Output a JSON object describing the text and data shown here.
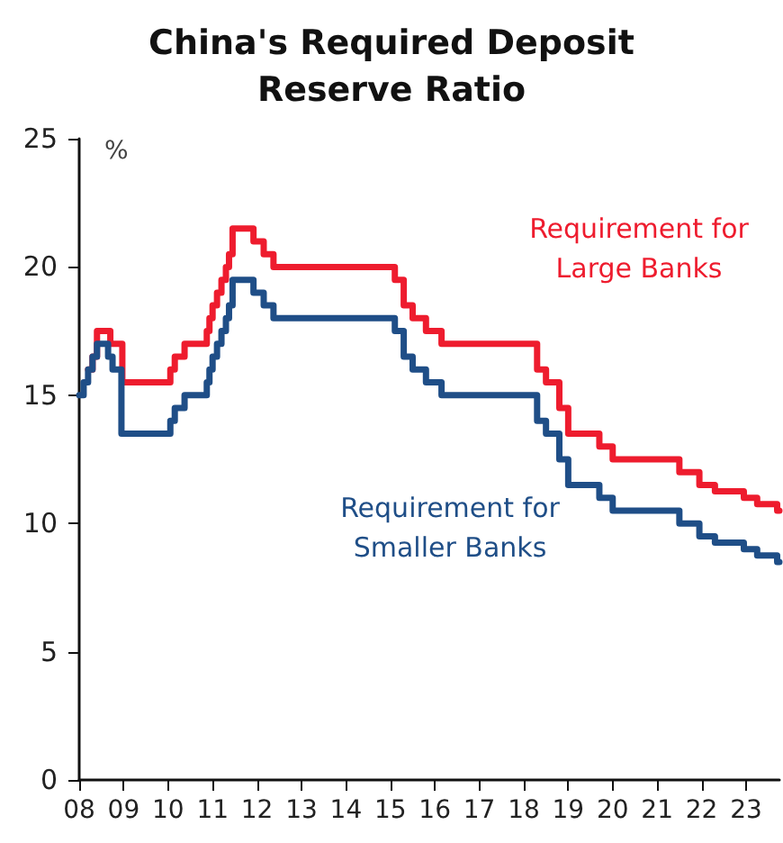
{
  "chart_data": {
    "type": "step",
    "title": "China's Required Deposit\nReserve Ratio",
    "ylabel": "%",
    "xlim": [
      2008,
      2023.75
    ],
    "ylim": [
      0,
      25
    ],
    "yticks": [
      0,
      5,
      10,
      15,
      20,
      25
    ],
    "xticks": [
      {
        "value": 2008,
        "label": "08"
      },
      {
        "value": 2009,
        "label": "09"
      },
      {
        "value": 2010,
        "label": "10"
      },
      {
        "value": 2011,
        "label": "11"
      },
      {
        "value": 2012,
        "label": "12"
      },
      {
        "value": 2013,
        "label": "13"
      },
      {
        "value": 2014,
        "label": "14"
      },
      {
        "value": 2015,
        "label": "15"
      },
      {
        "value": 2016,
        "label": "16"
      },
      {
        "value": 2017,
        "label": "17"
      },
      {
        "value": 2018,
        "label": "18"
      },
      {
        "value": 2019,
        "label": "19"
      },
      {
        "value": 2020,
        "label": "20"
      },
      {
        "value": 2021,
        "label": "21"
      },
      {
        "value": 2022,
        "label": "22"
      },
      {
        "value": 2023,
        "label": "23"
      }
    ],
    "grid": false,
    "legend": false,
    "marker": "none",
    "line_style": "solid",
    "series": [
      {
        "name": "Requirement for\nLarge Banks",
        "color": "#ee1c2e",
        "x": [
          2008.2,
          2008.3,
          2008.4,
          2008.7,
          2008.8,
          2008.97,
          2010.05,
          2010.15,
          2010.37,
          2010.87,
          2010.93,
          2011.0,
          2011.1,
          2011.2,
          2011.3,
          2011.37,
          2011.45,
          2011.92,
          2012.15,
          2012.37,
          2015.1,
          2015.3,
          2015.5,
          2015.8,
          2016.15,
          2018.3,
          2018.5,
          2018.8,
          2019.0,
          2019.7,
          2020.0,
          2021.5,
          2021.95,
          2022.3,
          2022.95,
          2023.25,
          2023.7,
          2023.75
        ],
        "values": [
          16,
          16.5,
          17.5,
          17,
          17,
          15.5,
          16,
          16.5,
          17,
          17.5,
          18,
          18.5,
          19,
          19.5,
          20,
          20.5,
          21.5,
          21,
          20.5,
          20,
          19.5,
          18.5,
          18,
          17.5,
          17,
          16,
          15.5,
          14.5,
          13.5,
          13,
          12.5,
          12,
          11.5,
          11.25,
          11,
          10.75,
          10.5,
          10.5
        ]
      },
      {
        "name": "Requirement for\nSmaller Banks",
        "color": "#1f4e87",
        "x": [
          2008,
          2008.1,
          2008.2,
          2008.3,
          2008.4,
          2008.65,
          2008.75,
          2008.95,
          2010.05,
          2010.15,
          2010.37,
          2010.87,
          2010.93,
          2011.0,
          2011.1,
          2011.2,
          2011.3,
          2011.37,
          2011.45,
          2011.92,
          2012.15,
          2012.37,
          2015.1,
          2015.3,
          2015.5,
          2015.8,
          2016.15,
          2018.3,
          2018.5,
          2018.8,
          2019.0,
          2019.7,
          2020.0,
          2021.5,
          2021.95,
          2022.3,
          2022.95,
          2023.25,
          2023.7,
          2023.75
        ],
        "values": [
          15,
          15.5,
          16,
          16.5,
          17,
          16.5,
          16,
          13.5,
          14,
          14.5,
          15,
          15.5,
          16,
          16.5,
          17,
          17.5,
          18,
          18.5,
          19.5,
          19,
          18.5,
          18,
          17.5,
          16.5,
          16,
          15.5,
          15,
          14,
          13.5,
          12.5,
          11.5,
          11,
          10.5,
          10,
          9.5,
          9.25,
          9,
          8.75,
          8.5,
          8.5
        ]
      }
    ]
  }
}
